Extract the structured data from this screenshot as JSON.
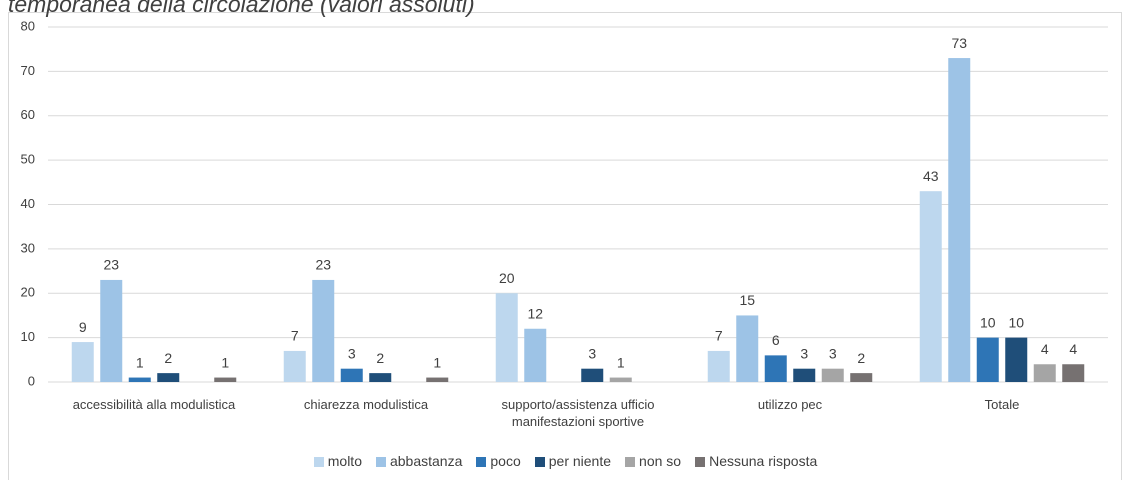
{
  "chart_data": {
    "type": "bar",
    "title": "temporanea della circolazione (valori assoluti)",
    "categories": [
      "accessibilità alla modulistica",
      "chiarezza modulistica",
      "supporto/assistenza ufficio manifestazioni sportive",
      "utilizzo pec",
      "Totale"
    ],
    "series": [
      {
        "name": "molto",
        "color": "#bdd7ee",
        "values": [
          9,
          7,
          20,
          7,
          43
        ]
      },
      {
        "name": "abbastanza",
        "color": "#9dc3e6",
        "values": [
          23,
          23,
          12,
          15,
          73
        ]
      },
      {
        "name": "poco",
        "color": "#2e75b6",
        "values": [
          1,
          3,
          null,
          6,
          10
        ]
      },
      {
        "name": "per niente",
        "color": "#1f4e79",
        "values": [
          2,
          2,
          3,
          3,
          10
        ]
      },
      {
        "name": "non so",
        "color": "#a5a5a5",
        "values": [
          null,
          null,
          1,
          3,
          4
        ]
      },
      {
        "name": "Nessuna risposta",
        "color": "#767171",
        "values": [
          1,
          1,
          null,
          2,
          4
        ]
      }
    ],
    "ylim": [
      0,
      80
    ],
    "yticks": [
      0,
      10,
      20,
      30,
      40,
      50,
      60,
      70,
      80
    ],
    "grid": true,
    "legend": "bottom"
  }
}
